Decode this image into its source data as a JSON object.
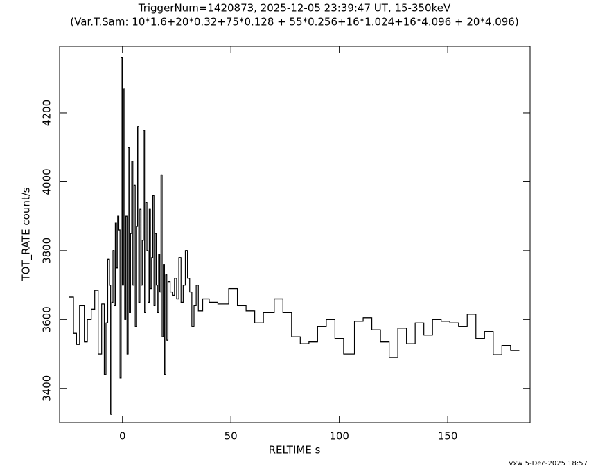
{
  "chart_data": {
    "type": "histogram",
    "title": "TriggerNum=1420873, 2025-12-05 23:39:47 UT, 15-350keV",
    "subtitle": "(Var.T.Sam: 10*1.6+20*0.32+75*0.128  +  55*0.256+16*1.024+16*4.096  +  20*4.096)",
    "xlabel": "RELTIME  s",
    "ylabel": "TOT_RATE  count/s",
    "footer": "vxw  5-Dec-2025 18:57",
    "color": "#000000",
    "xlim": [
      -29,
      188
    ],
    "ylim": [
      3301,
      4393
    ],
    "xticks": [
      0,
      50,
      100,
      150
    ],
    "yticks": [
      3400,
      3600,
      3800,
      4000,
      4200
    ],
    "bins": [
      -24.6,
      -22.6,
      -21.2,
      -19.8,
      -17.6,
      -16.2,
      -14.4,
      -12.8,
      -11.2,
      -9.6,
      -8.4,
      -7.6,
      -6.8,
      -6,
      -5.46,
      -4.92,
      -4.38,
      -3.84,
      -3.3,
      -2.76,
      -2.22,
      -1.68,
      -1.14,
      -0.6,
      -0.06,
      0.48,
      1.02,
      1.56,
      2.1,
      2.64,
      3.18,
      3.72,
      4.26,
      4.8,
      5.34,
      5.88,
      6.42,
      6.96,
      7.5,
      8.04,
      8.58,
      9.12,
      9.66,
      10.2,
      10.74,
      11.28,
      11.82,
      12.36,
      12.9,
      13.44,
      13.98,
      14.52,
      15.06,
      15.6,
      16.14,
      16.68,
      17.22,
      17.76,
      18.3,
      18.84,
      19.38,
      19.92,
      20.46,
      21,
      22,
      23,
      24,
      25,
      26,
      27,
      28,
      29,
      30,
      31,
      32,
      33,
      34,
      35,
      37,
      40,
      44,
      49,
      53,
      57,
      61,
      65,
      70,
      74,
      78,
      82,
      86,
      90,
      94,
      98,
      102,
      107,
      111,
      115,
      119,
      123,
      127,
      131,
      135,
      139,
      143,
      147,
      151,
      155,
      159,
      163,
      167,
      171,
      175,
      179,
      183
    ],
    "values": [
      3665,
      3560,
      3528,
      3640,
      3535,
      3600,
      3630,
      3685,
      3500,
      3645,
      3440,
      3590,
      3775,
      3700,
      3325,
      3650,
      3800,
      3640,
      3880,
      3750,
      3900,
      3860,
      3430,
      4360,
      3700,
      4270,
      3600,
      3900,
      3500,
      4100,
      3620,
      3850,
      4060,
      3700,
      3990,
      3580,
      3870,
      4160,
      3650,
      3920,
      3700,
      3830,
      4150,
      3620,
      3940,
      3800,
      3650,
      3920,
      3690,
      3780,
      3960,
      3640,
      3850,
      3700,
      3620,
      3790,
      3680,
      4020,
      3550,
      3760,
      3440,
      3730,
      3540,
      3710,
      3680,
      3670,
      3720,
      3660,
      3780,
      3650,
      3700,
      3800,
      3720,
      3680,
      3580,
      3640,
      3700,
      3625,
      3660,
      3650,
      3645,
      3690,
      3640,
      3625,
      3590,
      3620,
      3660,
      3620,
      3550,
      3530,
      3535,
      3580,
      3600,
      3545,
      3500,
      3595,
      3605,
      3570,
      3535,
      3490,
      3575,
      3530,
      3590,
      3555,
      3600,
      3595,
      3590,
      3580,
      3615,
      3545,
      3565,
      3498,
      3525,
      3510
    ]
  }
}
